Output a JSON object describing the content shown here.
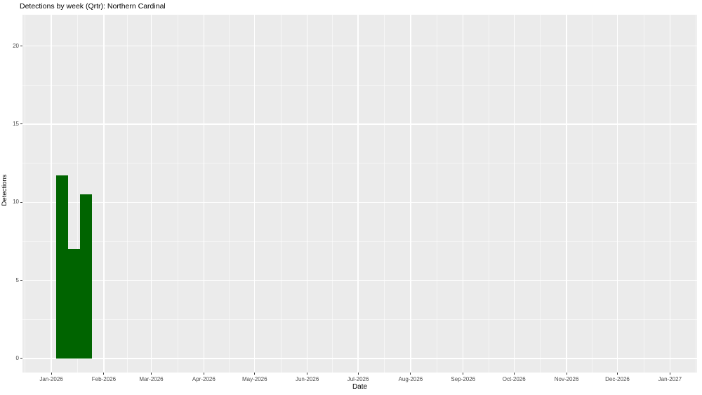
{
  "chart_data": {
    "type": "bar",
    "title": "Detections by week (Qrtr): Northern Cardinal",
    "xlabel": "Date",
    "ylabel": "Detections",
    "series_name": "Detections",
    "legend": "none",
    "grid": "major+minor",
    "x_ticks": [
      {
        "label": "Jan-2026",
        "date": "2026-01-01"
      },
      {
        "label": "Feb-2026",
        "date": "2026-02-01"
      },
      {
        "label": "Mar-2026",
        "date": "2026-03-01"
      },
      {
        "label": "Apr-2026",
        "date": "2026-04-01"
      },
      {
        "label": "May-2026",
        "date": "2026-05-01"
      },
      {
        "label": "Jun-2026",
        "date": "2026-06-01"
      },
      {
        "label": "Jul-2026",
        "date": "2026-07-01"
      },
      {
        "label": "Aug-2026",
        "date": "2026-08-01"
      },
      {
        "label": "Sep-2026",
        "date": "2026-09-01"
      },
      {
        "label": "Oct-2026",
        "date": "2026-10-01"
      },
      {
        "label": "Nov-2026",
        "date": "2026-11-01"
      },
      {
        "label": "Dec-2026",
        "date": "2026-12-01"
      },
      {
        "label": "Jan-2027",
        "date": "2027-01-01"
      }
    ],
    "y_ticks": [
      0,
      5,
      10,
      15,
      20
    ],
    "x_domain": [
      "2025-12-15",
      "2027-01-17"
    ],
    "y_domain": [
      -0.9,
      22.0
    ],
    "bars": [
      {
        "week_start": "2026-01-04",
        "value": 11.7
      },
      {
        "week_start": "2026-01-11",
        "value": 7.0
      },
      {
        "week_start": "2026-01-18",
        "value": 10.5
      }
    ],
    "bar_width_days": 6.8,
    "colors": {
      "bar_fill": "#006400",
      "panel_background": "#EBEBEB",
      "grid_major": "#FFFFFF",
      "grid_minor": "rgba(255,255,255,0.55)",
      "tick_mark": "#333333",
      "tick_label": "#4d4d4d",
      "text": "#000000"
    }
  }
}
